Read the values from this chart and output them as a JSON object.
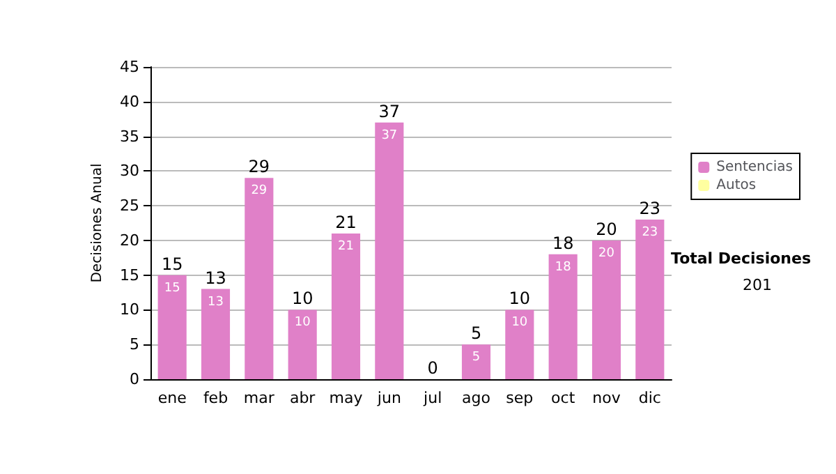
{
  "chart_data": {
    "type": "bar",
    "ylabel": "Decisiones Anual",
    "categories": [
      "ene",
      "feb",
      "mar",
      "abr",
      "may",
      "jun",
      "jul",
      "ago",
      "sep",
      "oct",
      "nov",
      "dic"
    ],
    "stacked": true,
    "series": [
      {
        "name": "Sentencias",
        "color": "#e080c8",
        "values": [
          15,
          13,
          29,
          10,
          21,
          37,
          0,
          5,
          10,
          18,
          20,
          23
        ],
        "value_labels": [
          "15",
          "13",
          "29",
          "10",
          "21",
          "37",
          null,
          "5",
          "10",
          "18",
          "20",
          "23"
        ]
      },
      {
        "name": "Autos",
        "color": "#ffffa0",
        "values": [
          null,
          null,
          null,
          null,
          null,
          null,
          null,
          null,
          null,
          null,
          null,
          null
        ]
      }
    ],
    "totals": [
      "15",
      "13",
      "29",
      "10",
      "21",
      "37",
      "0",
      "5",
      "10",
      "18",
      "20",
      "23"
    ],
    "ylim": [
      0,
      45
    ],
    "yticks": [
      0,
      5,
      10,
      15,
      20,
      25,
      30,
      35,
      40,
      45
    ],
    "grid": "y",
    "legend": "right",
    "annotations": [
      "Total Decisiones",
      "201"
    ]
  }
}
